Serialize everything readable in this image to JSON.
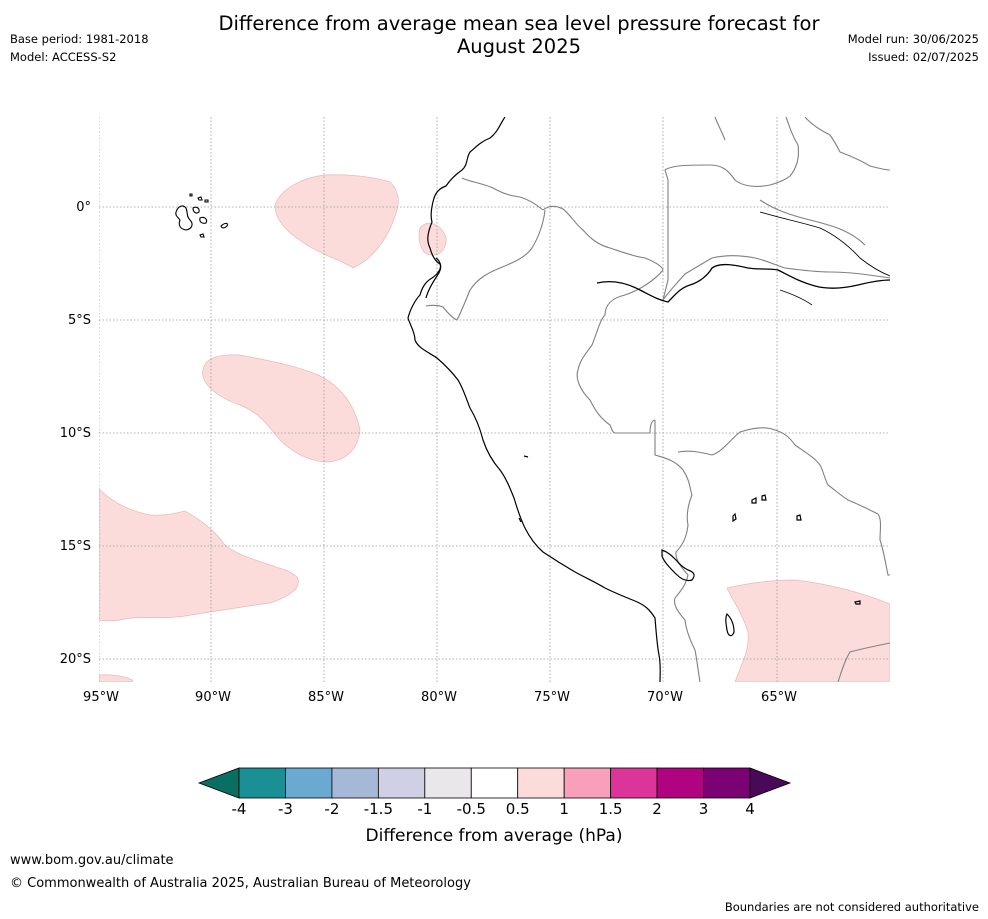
{
  "header": {
    "title_line1": "Difference from average mean sea level pressure forecast for",
    "title_line2": "August 2025",
    "base_period": "Base period: 1981-2018",
    "model": "Model: ACCESS-S2",
    "model_run": "Model run: 30/06/2025",
    "issued": "Issued: 02/07/2025"
  },
  "map": {
    "lon_ticks": [
      "95°W",
      "90°W",
      "85°W",
      "80°W",
      "75°W",
      "70°W",
      "65°W"
    ],
    "lat_ticks": [
      "0°",
      "5°S",
      "10°S",
      "15°S",
      "20°S"
    ],
    "anomaly_fill": "#fcdcdb",
    "coast_color": "#000000",
    "border_color": "#808080"
  },
  "colorbar": {
    "title": "Difference from average (hPa)",
    "ticks": [
      "-4",
      "-3",
      "-2",
      "-1.5",
      "-1",
      "-0.5",
      "0.5",
      "1",
      "1.5",
      "2",
      "3",
      "4"
    ],
    "low_extend_color": "#0a6f63",
    "high_extend_color": "#4a0858",
    "colors": [
      "#1a9095",
      "#6aa9d0",
      "#a6b8d8",
      "#cfd0e4",
      "#e9e7ea",
      "#ffffff",
      "#fcdcdb",
      "#f8a0bb",
      "#dc3599",
      "#b0037f",
      "#7b0273"
    ]
  },
  "footer": {
    "url": "www.bom.gov.au/climate",
    "copyright": "© Commonwealth of Australia 2025, Australian Bureau of Meteorology",
    "note": "Boundaries are not considered authoritative"
  }
}
